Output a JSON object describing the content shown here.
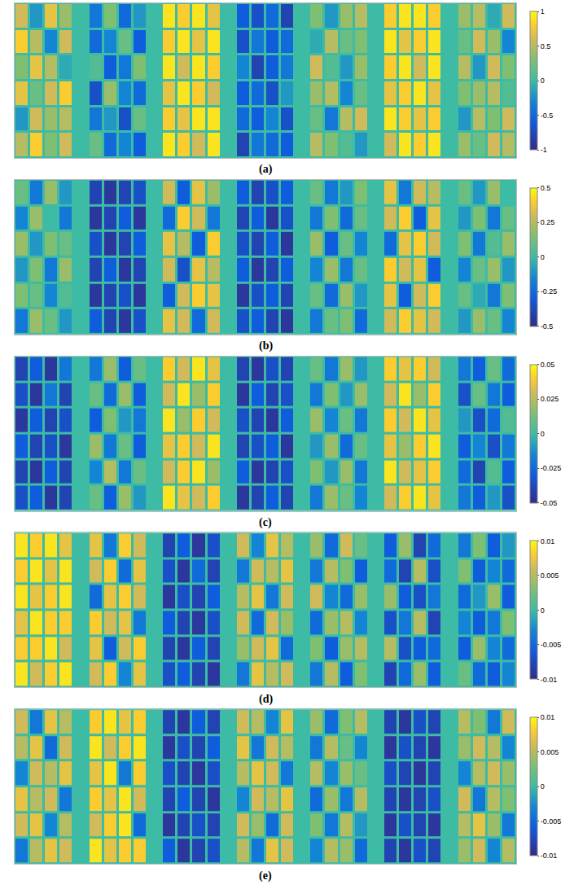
{
  "chart_data": [
    {
      "type": "heatmap",
      "title": "(a)",
      "tick_labels": false,
      "colorbar_range": [
        -1,
        1
      ],
      "colorbar_ticks": [
        -1,
        -0.5,
        0,
        0.5,
        1
      ],
      "cells": [
        [
          0.6,
          -0.2,
          0.7,
          0.4,
          null,
          -0.4,
          0.3,
          -0.5,
          -0.2,
          null,
          0.9,
          0.8,
          0.9,
          0.7,
          null,
          -0.6,
          -0.7,
          -0.5,
          -0.8,
          null,
          0.3,
          -0.2,
          0.4,
          0.5,
          null,
          0.8,
          0.9,
          0.9,
          0.8,
          null,
          0.4,
          0.5,
          -0.1,
          0.6
        ],
        [
          0.8,
          0.5,
          -0.3,
          0.6,
          null,
          -0.5,
          -0.3,
          0.2,
          -0.6,
          null,
          0.8,
          0.9,
          0.7,
          0.9,
          null,
          -0.7,
          -0.4,
          -0.6,
          -0.5,
          null,
          -0.1,
          0.5,
          0.2,
          0.3,
          null,
          0.9,
          0.7,
          0.8,
          0.9,
          null,
          0.2,
          0.6,
          0.4,
          -0.3
        ],
        [
          0.3,
          0.7,
          0.5,
          -0.1,
          null,
          0.1,
          -0.6,
          -0.4,
          0.3,
          null,
          0.9,
          0.6,
          0.9,
          0.8,
          null,
          -0.3,
          -0.8,
          -0.6,
          -0.4,
          null,
          0.6,
          0.1,
          -0.2,
          0.4,
          null,
          0.8,
          0.9,
          0.6,
          0.9,
          null,
          0.5,
          -0.2,
          0.6,
          0.3
        ],
        [
          0.7,
          0.2,
          0.6,
          0.8,
          null,
          -0.7,
          0.4,
          -0.3,
          -0.5,
          null,
          0.7,
          0.9,
          0.8,
          0.6,
          null,
          -0.6,
          -0.5,
          -0.7,
          -0.2,
          null,
          0.4,
          0.5,
          -0.3,
          0.2,
          null,
          0.7,
          0.8,
          0.9,
          0.7,
          null,
          0.3,
          0.4,
          0.5,
          0.1
        ],
        [
          -0.2,
          0.6,
          0.4,
          0.5,
          null,
          -0.4,
          -0.2,
          -0.7,
          0.2,
          null,
          0.8,
          0.7,
          0.9,
          0.9,
          null,
          -0.5,
          -0.6,
          -0.3,
          -0.7,
          null,
          0.2,
          -0.4,
          0.5,
          0.6,
          null,
          0.9,
          0.8,
          0.7,
          0.8,
          null,
          -0.2,
          0.5,
          0.3,
          0.6
        ],
        [
          0.5,
          0.8,
          0.3,
          0.6,
          null,
          0.2,
          -0.5,
          -0.3,
          -0.6,
          null,
          0.9,
          0.8,
          0.6,
          0.9,
          null,
          -0.8,
          -0.4,
          -0.5,
          -0.6,
          null,
          0.5,
          0.3,
          0.1,
          -0.2,
          null,
          0.6,
          0.9,
          0.8,
          0.9,
          null,
          0.4,
          0.2,
          0.6,
          0.5
        ]
      ]
    },
    {
      "type": "heatmap",
      "title": "(b)",
      "tick_labels": false,
      "colorbar_range": [
        -0.5,
        0.5
      ],
      "colorbar_ticks": [
        -0.5,
        -0.25,
        0,
        0.25,
        0.5
      ],
      "cells": [
        [
          0.1,
          -0.2,
          0.2,
          -0.1,
          null,
          -0.4,
          -0.45,
          -0.4,
          -0.35,
          null,
          0.3,
          -0.3,
          0.35,
          0.2,
          null,
          -0.3,
          -0.4,
          -0.35,
          -0.3,
          null,
          0.1,
          -0.2,
          -0.1,
          0.15,
          null,
          0.35,
          -0.2,
          0.3,
          0.25,
          null,
          0.1,
          -0.1,
          0.2,
          0
        ],
        [
          -0.15,
          0.2,
          0,
          -0.2,
          null,
          -0.45,
          -0.4,
          -0.3,
          -0.45,
          null,
          -0.25,
          0.4,
          0.3,
          -0.2,
          null,
          -0.4,
          -0.3,
          -0.45,
          -0.35,
          null,
          -0.2,
          0.15,
          -0.25,
          0.1,
          null,
          0.3,
          0.4,
          -0.3,
          0.35,
          null,
          -0.1,
          0.15,
          -0.2,
          0.1
        ],
        [
          0.2,
          -0.1,
          0.15,
          0.1,
          null,
          -0.35,
          -0.45,
          -0.4,
          -0.3,
          null,
          0.35,
          0.25,
          -0.3,
          0.4,
          null,
          -0.35,
          -0.4,
          -0.3,
          -0.45,
          null,
          0.2,
          -0.3,
          0.1,
          -0.15,
          null,
          -0.25,
          0.35,
          0.4,
          0.3,
          null,
          0.15,
          -0.2,
          0.05,
          0.2
        ],
        [
          -0.1,
          0.15,
          -0.2,
          0.2,
          null,
          -0.4,
          -0.3,
          -0.45,
          -0.4,
          null,
          0.3,
          -0.35,
          0.35,
          0.25,
          null,
          -0.3,
          -0.45,
          -0.4,
          -0.3,
          null,
          -0.15,
          0.2,
          -0.2,
          0.1,
          null,
          0.4,
          0.3,
          0.35,
          -0.3,
          null,
          -0.15,
          0.1,
          0.2,
          -0.1
        ],
        [
          0.15,
          0.1,
          -0.15,
          0.05,
          null,
          -0.45,
          -0.4,
          -0.35,
          -0.45,
          null,
          -0.3,
          0.3,
          0.4,
          0.35,
          null,
          -0.45,
          -0.35,
          -0.3,
          -0.4,
          null,
          0.1,
          -0.25,
          0.2,
          -0.1,
          null,
          0.35,
          -0.3,
          0.3,
          0.4,
          null,
          0.1,
          -0.05,
          -0.2,
          0.15
        ],
        [
          -0.2,
          0.2,
          0.1,
          -0.1,
          null,
          -0.3,
          -0.4,
          -0.45,
          -0.35,
          null,
          0.35,
          0.3,
          -0.25,
          0.3,
          null,
          -0.35,
          -0.3,
          -0.4,
          -0.45,
          null,
          -0.2,
          0.1,
          0.15,
          -0.25,
          null,
          0.3,
          0.4,
          0.35,
          0.3,
          null,
          -0.1,
          0.2,
          0.1,
          -0.15
        ]
      ]
    },
    {
      "type": "heatmap",
      "title": "(c)",
      "tick_labels": false,
      "colorbar_range": [
        -0.05,
        0.05
      ],
      "colorbar_ticks": [
        -0.05,
        -0.025,
        0,
        0.025,
        0.05
      ],
      "cells": [
        [
          -0.04,
          -0.03,
          -0.045,
          -0.02,
          null,
          -0.02,
          0.02,
          -0.03,
          0.01,
          null,
          0.04,
          0.03,
          0.045,
          0.035,
          null,
          -0.04,
          -0.045,
          -0.035,
          -0.04,
          null,
          0.01,
          -0.02,
          0.02,
          -0.01,
          null,
          0.04,
          0.035,
          0.04,
          0.03,
          null,
          -0.02,
          -0.03,
          0.01,
          -0.025
        ],
        [
          -0.035,
          -0.045,
          -0.02,
          -0.04,
          null,
          0.01,
          -0.025,
          0.02,
          -0.03,
          null,
          0.03,
          0.045,
          0.02,
          0.04,
          null,
          -0.045,
          -0.03,
          -0.04,
          -0.035,
          null,
          -0.02,
          0.015,
          -0.01,
          0.02,
          null,
          0.03,
          0.045,
          0.02,
          0.04,
          null,
          -0.035,
          0.01,
          -0.02,
          -0.03
        ],
        [
          -0.045,
          -0.03,
          -0.04,
          -0.035,
          null,
          -0.03,
          0.015,
          -0.01,
          -0.02,
          null,
          0.045,
          0.02,
          0.04,
          0.03,
          null,
          -0.035,
          -0.04,
          -0.045,
          -0.03,
          null,
          0.02,
          -0.015,
          0.01,
          -0.02,
          null,
          0.04,
          0.03,
          0.045,
          0.035,
          null,
          -0.01,
          -0.035,
          -0.025,
          0.005
        ],
        [
          -0.03,
          -0.04,
          -0.035,
          -0.045,
          null,
          0.02,
          -0.02,
          0.01,
          -0.03,
          null,
          0.035,
          0.04,
          0.03,
          0.045,
          null,
          -0.04,
          -0.035,
          -0.03,
          -0.045,
          null,
          -0.01,
          0.02,
          -0.025,
          0.01,
          null,
          0.035,
          0.02,
          0.04,
          0.045,
          null,
          -0.03,
          -0.015,
          -0.035,
          -0.02
        ],
        [
          -0.04,
          -0.045,
          -0.03,
          -0.04,
          null,
          -0.015,
          0.025,
          -0.02,
          0.01,
          null,
          0.03,
          0.04,
          0.045,
          0.02,
          null,
          -0.03,
          -0.045,
          -0.04,
          -0.035,
          null,
          0.015,
          -0.01,
          0.02,
          -0.02,
          null,
          0.045,
          0.03,
          0.035,
          0.04,
          null,
          -0.025,
          -0.04,
          0.005,
          -0.03
        ],
        [
          -0.035,
          -0.03,
          -0.045,
          -0.04,
          null,
          0.01,
          -0.03,
          0.02,
          -0.01,
          null,
          0.045,
          0.035,
          0.03,
          0.04,
          null,
          -0.045,
          -0.04,
          -0.03,
          -0.04,
          null,
          -0.02,
          0.02,
          0.01,
          -0.015,
          null,
          0.03,
          0.04,
          0.045,
          0.035,
          null,
          -0.02,
          -0.03,
          -0.01,
          -0.035
        ]
      ]
    },
    {
      "type": "heatmap",
      "title": "(d)",
      "tick_labels": false,
      "colorbar_range": [
        -0.01,
        0.01
      ],
      "colorbar_ticks": [
        -0.01,
        -0.005,
        0,
        0.005,
        0.01
      ],
      "cells": [
        [
          0.009,
          0.008,
          0.009,
          0.007,
          null,
          0.007,
          -0.004,
          0.008,
          0.006,
          null,
          -0.008,
          -0.006,
          -0.009,
          -0.007,
          null,
          0.006,
          -0.003,
          0.007,
          0.005,
          null,
          0.004,
          -0.005,
          0.006,
          0.002,
          null,
          -0.006,
          0.004,
          -0.008,
          -0.005,
          null,
          -0.004,
          0.003,
          -0.006,
          -0.002
        ],
        [
          0.008,
          0.009,
          0.007,
          0.009,
          null,
          0.006,
          0.008,
          -0.005,
          0.007,
          null,
          -0.007,
          -0.009,
          -0.005,
          -0.008,
          null,
          -0.004,
          0.006,
          0.005,
          0.007,
          null,
          -0.004,
          0.005,
          0.003,
          -0.006,
          null,
          -0.005,
          -0.008,
          0.005,
          -0.007,
          null,
          0.003,
          -0.006,
          -0.003,
          -0.005
        ],
        [
          0.009,
          0.007,
          0.008,
          0.009,
          null,
          -0.005,
          0.007,
          0.008,
          0.006,
          null,
          -0.009,
          -0.007,
          -0.008,
          -0.006,
          null,
          0.005,
          0.007,
          -0.004,
          0.006,
          null,
          0.006,
          -0.003,
          -0.005,
          0.004,
          null,
          0.004,
          -0.006,
          -0.007,
          -0.004,
          null,
          -0.005,
          -0.002,
          0.004,
          -0.006
        ],
        [
          0.007,
          0.009,
          0.008,
          0.008,
          null,
          0.008,
          0.006,
          0.007,
          -0.004,
          null,
          -0.006,
          -0.008,
          -0.009,
          -0.007,
          null,
          0.006,
          -0.005,
          0.006,
          0.004,
          null,
          -0.005,
          0.004,
          0.005,
          -0.003,
          null,
          -0.007,
          -0.004,
          0.005,
          -0.008,
          null,
          -0.003,
          -0.006,
          -0.004,
          0.003
        ],
        [
          0.008,
          0.008,
          0.009,
          0.006,
          null,
          0.007,
          -0.006,
          0.006,
          0.008,
          null,
          -0.008,
          -0.009,
          -0.006,
          -0.008,
          null,
          0.004,
          0.006,
          0.007,
          -0.005,
          null,
          0.003,
          -0.006,
          0.004,
          0.005,
          null,
          0.005,
          -0.007,
          -0.006,
          -0.005,
          null,
          -0.006,
          0.004,
          -0.003,
          -0.005
        ],
        [
          0.009,
          0.006,
          0.008,
          0.009,
          null,
          0.006,
          0.008,
          -0.003,
          0.007,
          null,
          -0.007,
          -0.006,
          -0.008,
          -0.009,
          null,
          -0.004,
          0.007,
          0.005,
          0.006,
          null,
          -0.004,
          0.005,
          -0.006,
          0.003,
          null,
          -0.008,
          -0.005,
          0.004,
          -0.006,
          null,
          0.002,
          -0.005,
          -0.006,
          -0.003
        ]
      ]
    },
    {
      "type": "heatmap",
      "title": "(e)",
      "tick_labels": false,
      "colorbar_range": [
        -0.01,
        0.01
      ],
      "colorbar_ticks": [
        -0.01,
        -0.005,
        0,
        0.005,
        0.01
      ],
      "cells": [
        [
          0.006,
          -0.004,
          0.007,
          0.005,
          null,
          0.008,
          0.009,
          0.007,
          0.008,
          null,
          -0.008,
          -0.009,
          -0.006,
          -0.008,
          null,
          0.006,
          0.005,
          -0.003,
          0.007,
          null,
          0.004,
          -0.005,
          0.003,
          0.005,
          null,
          -0.008,
          -0.009,
          -0.007,
          -0.008,
          null,
          0.005,
          0.003,
          -0.004,
          0.006
        ],
        [
          0.005,
          0.007,
          -0.005,
          0.006,
          null,
          0.009,
          0.006,
          0.008,
          0.009,
          null,
          -0.009,
          -0.007,
          -0.008,
          -0.006,
          null,
          0.007,
          -0.004,
          0.006,
          0.005,
          null,
          -0.004,
          0.005,
          0.002,
          -0.003,
          null,
          -0.009,
          -0.007,
          -0.008,
          -0.009,
          null,
          0.004,
          0.006,
          0.005,
          -0.003
        ],
        [
          -0.003,
          0.006,
          0.005,
          0.007,
          null,
          0.007,
          0.009,
          -0.004,
          0.008,
          null,
          -0.007,
          -0.008,
          -0.009,
          -0.007,
          null,
          0.005,
          0.007,
          0.006,
          -0.004,
          null,
          0.005,
          -0.003,
          0.004,
          0.002,
          null,
          -0.007,
          -0.008,
          -0.009,
          -0.008,
          null,
          -0.003,
          0.005,
          0.006,
          0.004
        ],
        [
          0.007,
          0.005,
          0.006,
          -0.004,
          null,
          0.008,
          0.007,
          0.009,
          0.006,
          null,
          -0.008,
          -0.006,
          -0.008,
          -0.009,
          null,
          -0.003,
          0.006,
          0.005,
          0.007,
          null,
          -0.005,
          0.004,
          -0.004,
          0.005,
          null,
          -0.008,
          -0.009,
          -0.008,
          -0.007,
          null,
          0.006,
          -0.004,
          0.005,
          0.003
        ],
        [
          0.006,
          0.007,
          -0.003,
          0.005,
          null,
          0.006,
          0.008,
          0.009,
          -0.005,
          null,
          -0.009,
          -0.008,
          -0.007,
          -0.008,
          null,
          0.006,
          0.004,
          -0.005,
          0.006,
          null,
          0.003,
          -0.004,
          0.005,
          -0.002,
          null,
          -0.009,
          -0.007,
          -0.008,
          -0.009,
          null,
          0.005,
          0.007,
          0.004,
          -0.004
        ],
        [
          -0.004,
          0.005,
          0.007,
          0.006,
          null,
          0.009,
          0.007,
          0.008,
          0.008,
          null,
          -0.006,
          -0.009,
          -0.008,
          -0.007,
          null,
          0.005,
          -0.004,
          0.007,
          0.006,
          null,
          -0.003,
          0.005,
          0.004,
          -0.005,
          null,
          -0.008,
          -0.009,
          -0.007,
          -0.008,
          null,
          0.004,
          0.006,
          -0.003,
          0.005
        ]
      ]
    }
  ]
}
